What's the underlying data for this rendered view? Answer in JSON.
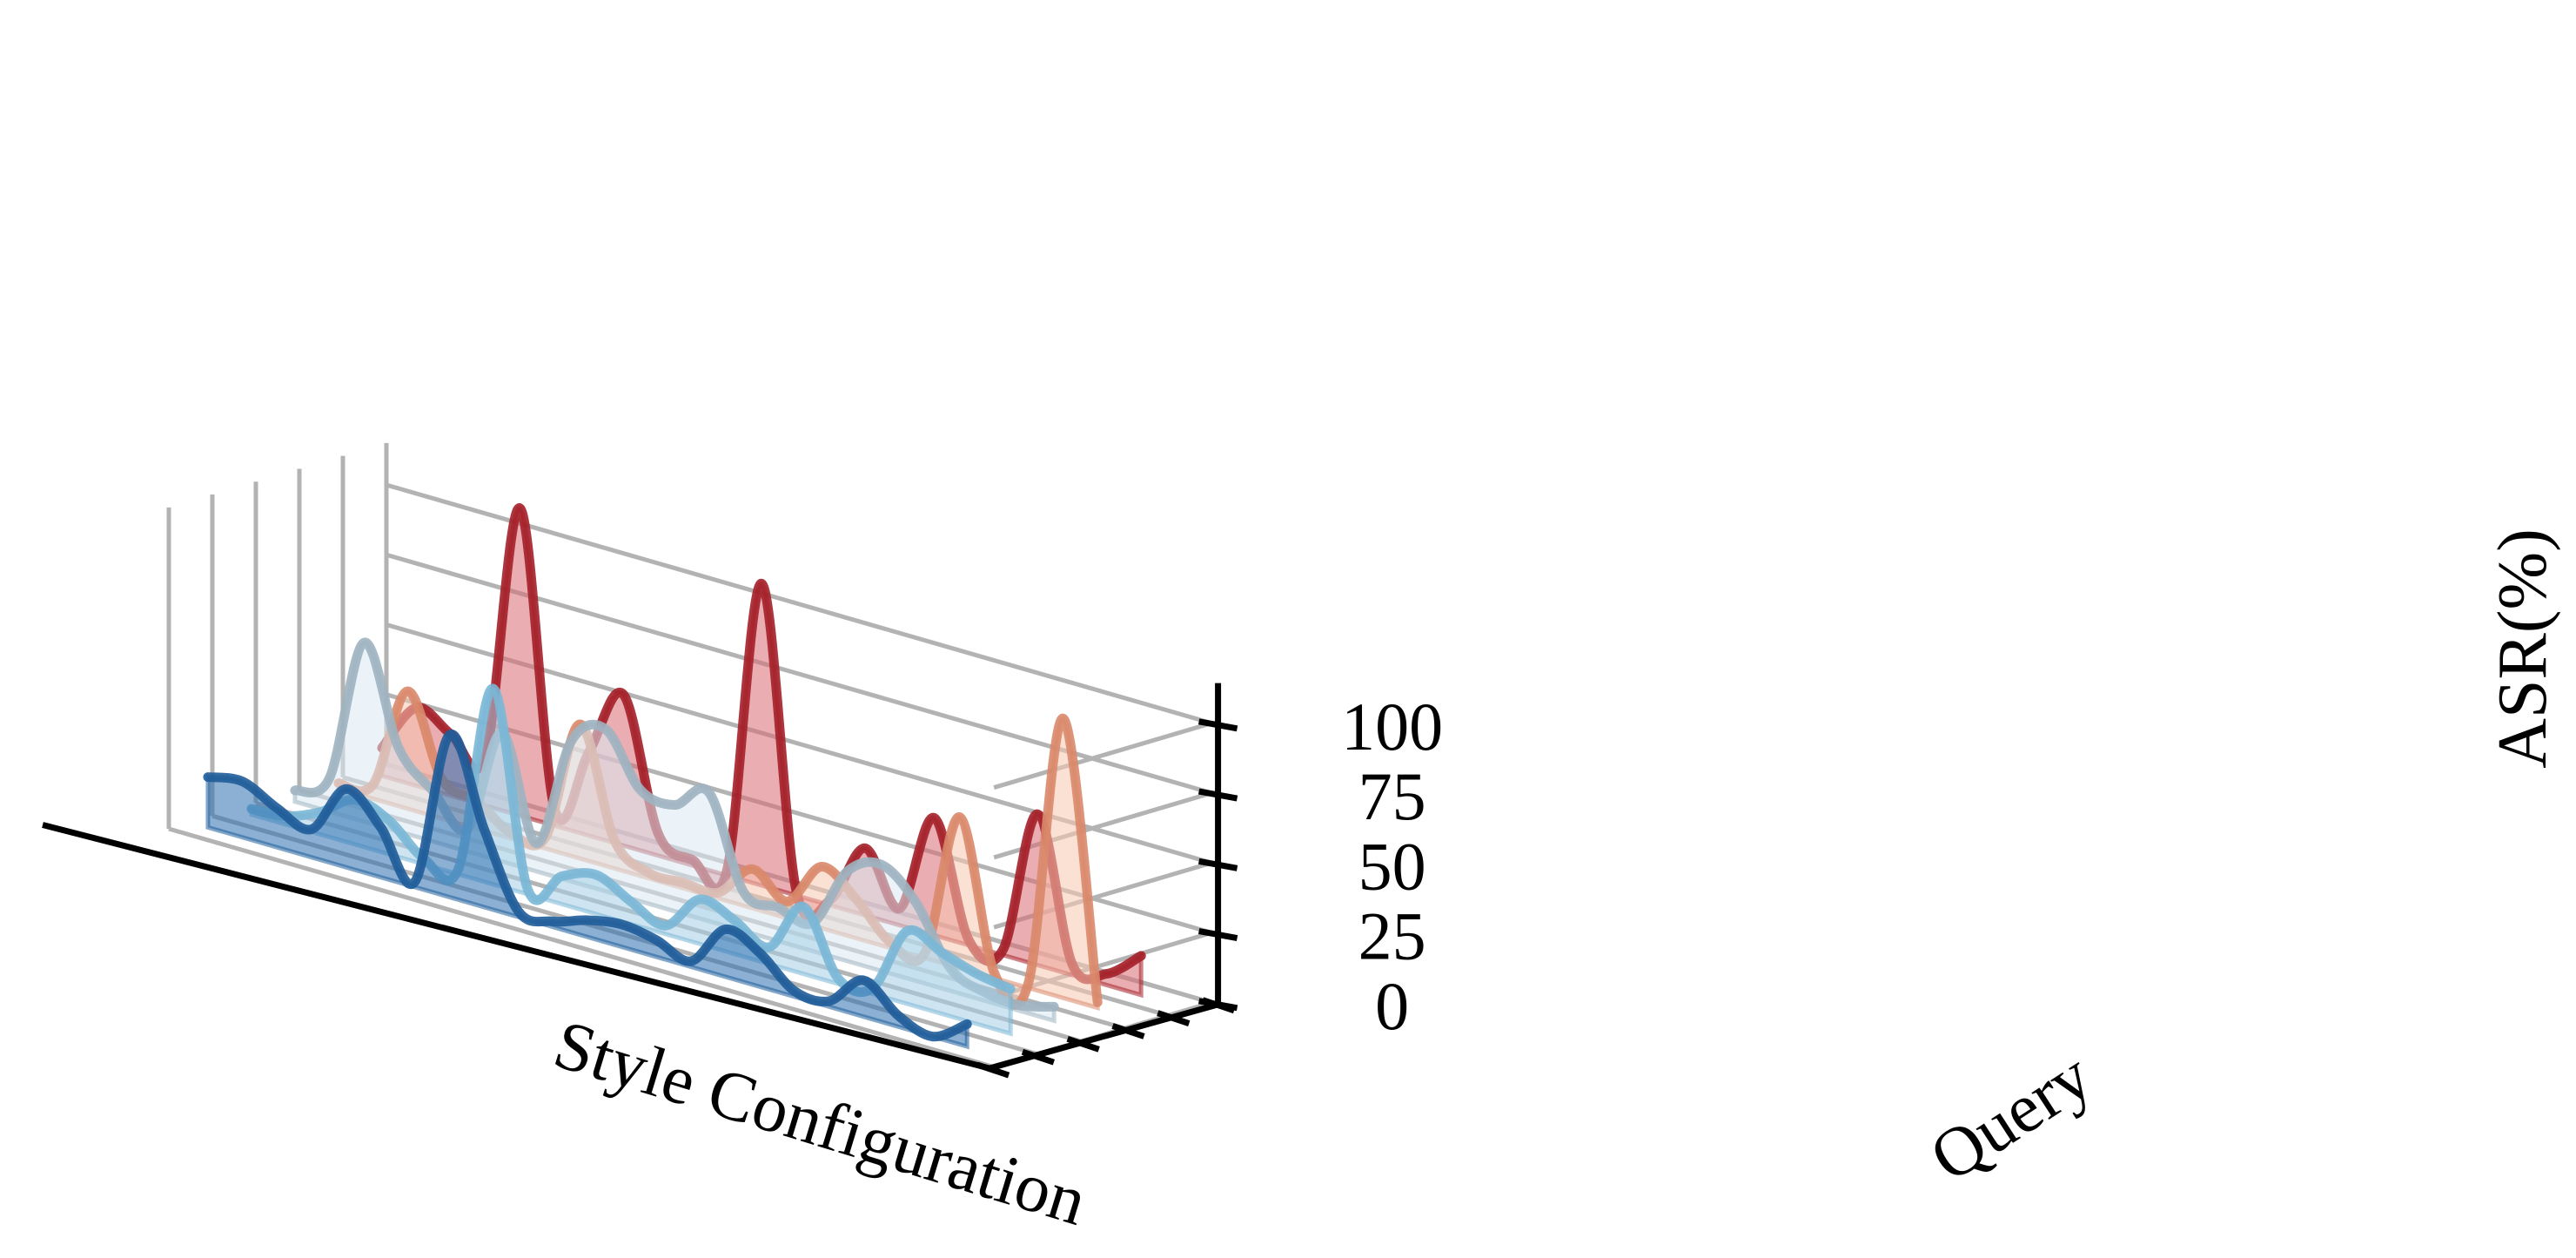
{
  "chart_data": {
    "type": "area",
    "projection": "3d",
    "zlabel": "ASR(%)",
    "xlabel": "Style Configuration",
    "ylabel": "Query",
    "zlim": [
      0,
      110
    ],
    "z_ticks": [
      0,
      25,
      50,
      75,
      100
    ],
    "z_tick_labels": [
      "0",
      "25",
      "50",
      "75",
      "100"
    ],
    "grid": true,
    "x_range": [
      0,
      19
    ],
    "series": [
      {
        "color": "#1f5c99",
        "fill": "#2c6fb0",
        "values": [
          18,
          20,
          14,
          10,
          28,
          18,
          2,
          58,
          28,
          2,
          2,
          6,
          8,
          6,
          2,
          17,
          12,
          2,
          2,
          13,
          4,
          0,
          8
        ]
      },
      {
        "color": "#7ab7d6",
        "fill": "#a6cfe6",
        "values": [
          2,
          3,
          8,
          16,
          12,
          2,
          2,
          70,
          2,
          10,
          14,
          8,
          3,
          16,
          12,
          6,
          24,
          2,
          2,
          26,
          22,
          18,
          16
        ]
      },
      {
        "color": "#9fb2c0",
        "fill": "#dbe9f3",
        "values": [
          4,
          12,
          64,
          30,
          18,
          8,
          46,
          10,
          50,
          58,
          40,
          38,
          46,
          14,
          12,
          10,
          32,
          38,
          28,
          8,
          3,
          2,
          5
        ]
      },
      {
        "color": "#d9886a",
        "fill": "#f7c7b1",
        "values": [
          2,
          5,
          42,
          14,
          10,
          2,
          4,
          48,
          10,
          2,
          2,
          2,
          14,
          6,
          22,
          14,
          2,
          2,
          54,
          2,
          2,
          100,
          2
        ]
      },
      {
        "color": "#a41f28",
        "fill": "#d86a72",
        "values": [
          10,
          28,
          22,
          18,
          110,
          6,
          30,
          54,
          8,
          2,
          2,
          108,
          2,
          2,
          24,
          6,
          42,
          2,
          2,
          54,
          4,
          4,
          14
        ]
      }
    ]
  }
}
